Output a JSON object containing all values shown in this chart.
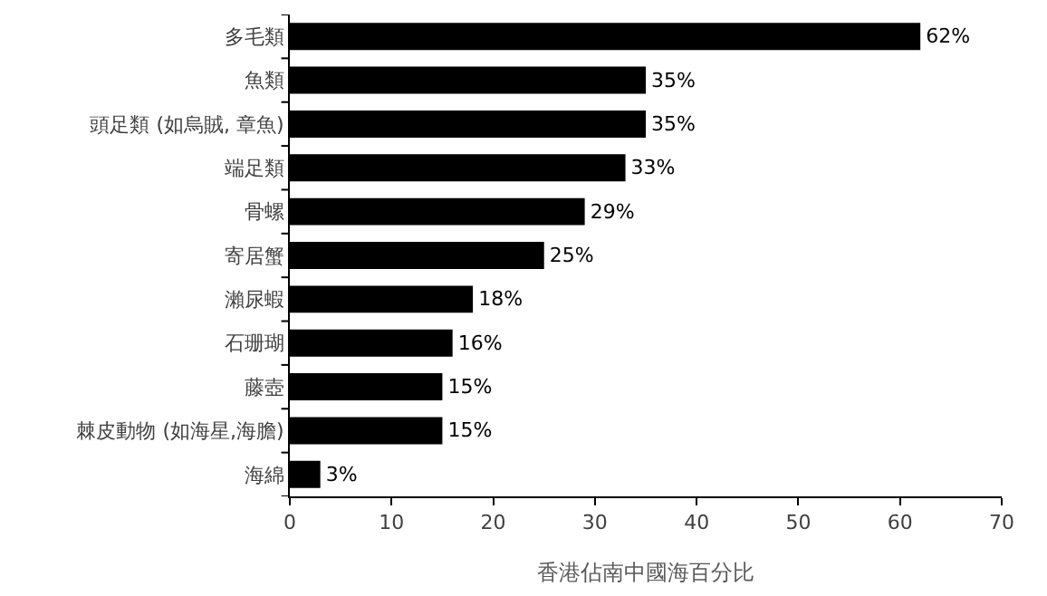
{
  "chart_data": {
    "type": "bar",
    "orientation": "horizontal",
    "categories": [
      "多毛類",
      "魚類",
      "頭足類 (如烏賊, 章魚)",
      "端足類",
      "骨螺",
      "寄居蟹",
      "瀨尿蝦",
      "石珊瑚",
      "藤壺",
      "棘皮動物 (如海星,海膽)",
      "海綿"
    ],
    "values": [
      62,
      35,
      35,
      33,
      29,
      25,
      18,
      16,
      15,
      15,
      3
    ],
    "value_labels": [
      "62%",
      "35%",
      "35%",
      "33%",
      "29%",
      "25%",
      "18%",
      "16%",
      "15%",
      "15%",
      "3%"
    ],
    "color": "#000000",
    "xlabel": "香港佔南中國海百分比",
    "xlim": [
      0,
      70
    ],
    "xticks": [
      0,
      10,
      20,
      30,
      40,
      50,
      60,
      70
    ],
    "grid": false,
    "legend": false
  }
}
